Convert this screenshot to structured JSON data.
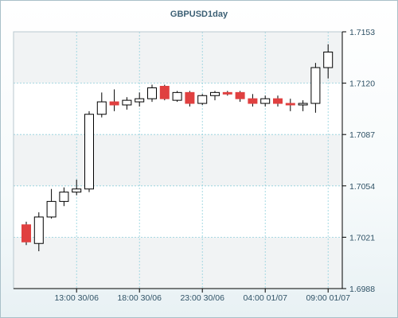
{
  "chart_data": {
    "type": "candlestick",
    "title": "GBPUSD1day",
    "y_ticks": [
      "1.7153",
      "1.7120",
      "1.7087",
      "1.7054",
      "1.7021",
      "1.6988"
    ],
    "y_tick_values": [
      1.7153,
      1.712,
      1.7087,
      1.7054,
      1.7021,
      1.6988
    ],
    "ylim": [
      1.6988,
      1.7153
    ],
    "x_ticks": [
      {
        "label": "13:00 30/06",
        "index": 4
      },
      {
        "label": "18:00 30/06",
        "index": 9
      },
      {
        "label": "23:00 30/06",
        "index": 14
      },
      {
        "label": "04:00 01/07",
        "index": 19
      },
      {
        "label": "09:00 01/07",
        "index": 24
      }
    ],
    "grid": true,
    "up_color": "#ffffff",
    "down_color": "#e04040",
    "candles": [
      {
        "open": 1.7029,
        "high": 1.7031,
        "low": 1.7016,
        "close": 1.7018
      },
      {
        "open": 1.7017,
        "high": 1.7037,
        "low": 1.7012,
        "close": 1.7034
      },
      {
        "open": 1.7034,
        "high": 1.7052,
        "low": 1.7033,
        "close": 1.7044
      },
      {
        "open": 1.7044,
        "high": 1.7053,
        "low": 1.7041,
        "close": 1.705
      },
      {
        "open": 1.705,
        "high": 1.7058,
        "low": 1.7048,
        "close": 1.7052
      },
      {
        "open": 1.7052,
        "high": 1.7102,
        "low": 1.705,
        "close": 1.71
      },
      {
        "open": 1.71,
        "high": 1.7114,
        "low": 1.7098,
        "close": 1.7108
      },
      {
        "open": 1.7108,
        "high": 1.7116,
        "low": 1.7102,
        "close": 1.7106
      },
      {
        "open": 1.7106,
        "high": 1.7111,
        "low": 1.7103,
        "close": 1.7109
      },
      {
        "open": 1.7108,
        "high": 1.7114,
        "low": 1.7105,
        "close": 1.711
      },
      {
        "open": 1.711,
        "high": 1.7119,
        "low": 1.7108,
        "close": 1.7117
      },
      {
        "open": 1.7118,
        "high": 1.7119,
        "low": 1.7109,
        "close": 1.711
      },
      {
        "open": 1.7109,
        "high": 1.7115,
        "low": 1.7108,
        "close": 1.7114
      },
      {
        "open": 1.7114,
        "high": 1.7115,
        "low": 1.7105,
        "close": 1.7107
      },
      {
        "open": 1.7107,
        "high": 1.7113,
        "low": 1.7106,
        "close": 1.7112
      },
      {
        "open": 1.7112,
        "high": 1.7115,
        "low": 1.7109,
        "close": 1.7114
      },
      {
        "open": 1.7114,
        "high": 1.7115,
        "low": 1.7112,
        "close": 1.7113
      },
      {
        "open": 1.7114,
        "high": 1.7115,
        "low": 1.7108,
        "close": 1.711
      },
      {
        "open": 1.711,
        "high": 1.7113,
        "low": 1.7105,
        "close": 1.7107
      },
      {
        "open": 1.7107,
        "high": 1.7112,
        "low": 1.7105,
        "close": 1.711
      },
      {
        "open": 1.711,
        "high": 1.7112,
        "low": 1.7105,
        "close": 1.7107
      },
      {
        "open": 1.7107,
        "high": 1.711,
        "low": 1.7102,
        "close": 1.7106
      },
      {
        "open": 1.7106,
        "high": 1.7109,
        "low": 1.7102,
        "close": 1.7107
      },
      {
        "open": 1.7107,
        "high": 1.7133,
        "low": 1.7101,
        "close": 1.713
      },
      {
        "open": 1.713,
        "high": 1.7145,
        "low": 1.7123,
        "close": 1.714
      }
    ]
  }
}
